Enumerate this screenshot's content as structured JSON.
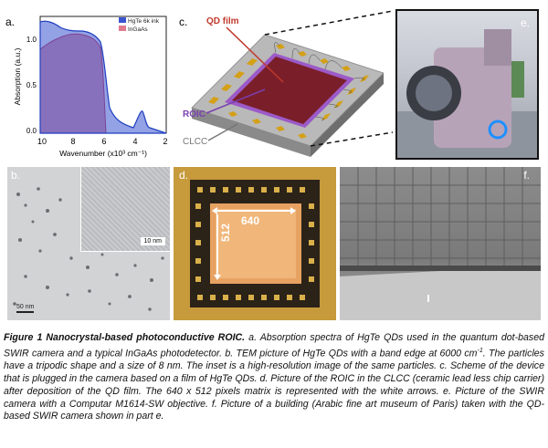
{
  "panels": {
    "a": {
      "label": "a.",
      "legend": [
        "HgTe 6k ink",
        "InGaAs"
      ],
      "ylabel": "Absorption (a.u.)",
      "xlabel": "Wavenumber (x10³ cm⁻¹)",
      "xticks": [
        "10",
        "8",
        "6",
        "4",
        "2"
      ],
      "yticks": [
        "1.0",
        "0.5",
        "0.0"
      ],
      "colors": {
        "hgte": "#1f3fbf",
        "ingaas": "#c8304a"
      }
    },
    "b": {
      "label": "b.",
      "inset_scale": "10 nm",
      "scale": "50 nm"
    },
    "c": {
      "label": "c.",
      "qd_film": "QD film",
      "roic": "ROIC",
      "clcc": "CLCC"
    },
    "d": {
      "label": "d.",
      "width": "640",
      "height": "512"
    },
    "e": {
      "label": "e."
    },
    "f": {
      "label": "f."
    }
  },
  "caption": {
    "title": "Figure 1 Nanocrystal-based photoconductive ROIC.",
    "p1": " a. Absorption spectra of HgTe QDs used in the quantum dot-based SWIR camera and a typical InGaAs photodetector. b. TEM picture of HgTe QDs with a band edge at 6000 cm",
    "sup": "-1",
    "p2": ". The particles have a tripodic shape and a size of 8 nm. The inset is a high-resolution image of the same particles. c. Scheme of the device that is plugged in the camera based on a film of HgTe QDs. d. Picture of the ROIC in the CLCC (ceramic lead less chip carrier) after deposition of the QD film. The 640 x 512 pixels matrix is represented with the white arrows. e. Picture of the SWIR camera with a Computar M1614-SW objective. f. Picture of a building (Arabic fine art museum of Paris) taken with the QD-based SWIR camera shown in part e."
  }
}
